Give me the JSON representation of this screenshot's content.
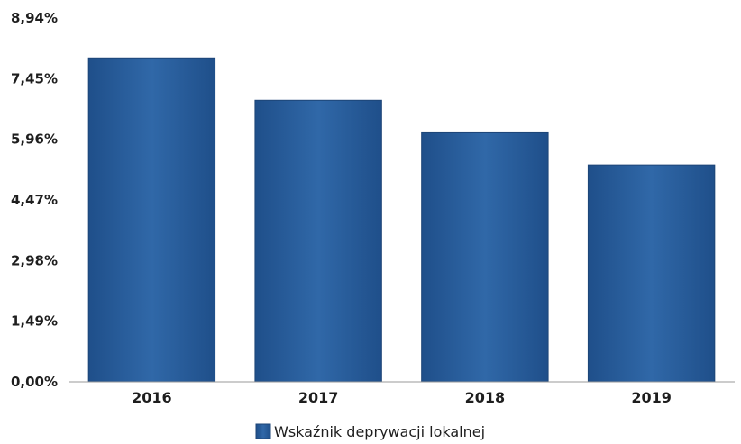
{
  "chart_data": {
    "type": "bar",
    "categories": [
      "2016",
      "2017",
      "2018",
      "2019"
    ],
    "series": [
      {
        "name": "Wskaźnik deprywacji lokalnej",
        "values": [
          7.96,
          6.92,
          6.12,
          5.33
        ]
      }
    ],
    "y_ticks": [
      "0,00%",
      "1,49%",
      "2,98%",
      "4,47%",
      "5,96%",
      "7,45%",
      "8,94%"
    ],
    "ylim": [
      0,
      8.94
    ],
    "grid": false,
    "legend_position": "bottom",
    "bar_color": "#2a5f9e",
    "bar_edge_color": "#1d4577"
  }
}
